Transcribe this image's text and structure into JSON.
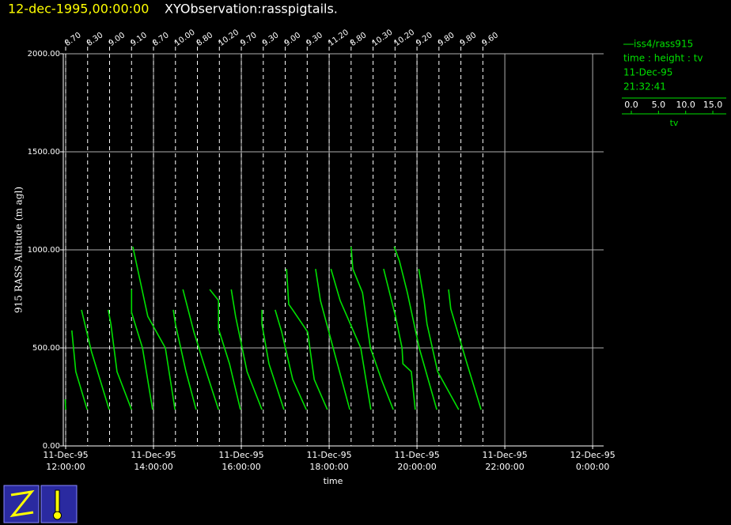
{
  "chart_data": {
    "type": "line",
    "title": "12-dec-1995,00:00:00",
    "subtitle": "XYObservation:rasspigtails.",
    "y_label": "915 RASS Altitude (m agl)",
    "x_label": "time",
    "xlim": [
      11.946,
      24.25
    ],
    "ylim": [
      0,
      2000
    ],
    "xticks": [
      {
        "value": 12,
        "label": "11-Dec-95\n12:00:00"
      },
      {
        "value": 14,
        "label": "11-Dec-95\n14:00:00"
      },
      {
        "value": 16,
        "label": "11-Dec-95\n16:00:00"
      },
      {
        "value": 18,
        "label": "11-Dec-95\n18:00:00"
      },
      {
        "value": 20,
        "label": "11-Dec-95\n20:00:00"
      },
      {
        "value": 22,
        "label": "11-Dec-95\n22:00:00"
      },
      {
        "value": 24,
        "label": "12-Dec-95\n0:00:00"
      }
    ],
    "yticks": [
      {
        "value": 0,
        "label": "0.00"
      },
      {
        "value": 500,
        "label": "500.00"
      },
      {
        "value": 1000,
        "label": "1000.00"
      },
      {
        "value": 1500,
        "label": "1500.00"
      },
      {
        "value": 2000,
        "label": "2000.00"
      }
    ],
    "grid": true,
    "pigtail_times": [
      12,
      12.5,
      13,
      13.5,
      14,
      14.5,
      15,
      15.5,
      16,
      16.5,
      17,
      17.5,
      18,
      18.5,
      19,
      19.5,
      20,
      20.5,
      21,
      21.5
    ],
    "pigtail_labels": [
      "8.70",
      "8.30",
      "9.00",
      "9.10",
      "8.70",
      "10.00",
      "8.80",
      "10.20",
      "9.70",
      "9.30",
      "9.00",
      "9.30",
      "11.20",
      "8.80",
      "10.30",
      "10.20",
      "9.20",
      "9.80",
      "9.80",
      "9.60"
    ],
    "series": [
      {
        "name": "iss4/rass915",
        "color": "#00e000",
        "x": [
          11.99,
          12.0,
          null,
          12.14,
          12.23,
          12.49,
          null,
          12.36,
          12.59,
          12.99,
          null,
          12.97,
          13.03,
          13.17,
          13.5,
          null,
          13.5,
          13.5,
          13.75,
          13.98,
          null,
          13.53,
          13.87,
          14.27,
          14.49,
          null,
          14.45,
          14.5,
          14.74,
          14.97,
          null,
          14.67,
          14.92,
          15.23,
          15.48,
          null,
          15.28,
          15.48,
          15.48,
          15.73,
          15.98,
          null,
          15.77,
          15.87,
          16.13,
          16.47,
          null,
          16.47,
          16.47,
          16.63,
          16.97,
          null,
          16.77,
          16.92,
          17.17,
          17.48,
          null,
          17.03,
          17.08,
          17.17,
          17.51,
          17.66,
          17.96,
          null,
          17.69,
          17.8,
          18.09,
          18.47,
          null,
          18.04,
          18.25,
          18.72,
          18.95,
          null,
          18.5,
          18.54,
          18.76,
          18.94,
          19.19,
          19.46,
          null,
          19.24,
          19.51,
          19.66,
          19.68,
          19.87,
          19.96,
          null,
          19.48,
          19.6,
          19.78,
          20.05,
          20.45,
          null,
          20.04,
          20.16,
          20.23,
          20.47,
          20.95,
          null,
          20.72,
          20.77,
          21.14,
          21.46
        ],
        "values": [
          238,
          185,
          null,
          589,
          379,
          185,
          null,
          694,
          480,
          185,
          null,
          694,
          621,
          379,
          185,
          null,
          798,
          681,
          500,
          185,
          null,
          1016,
          661,
          500,
          185,
          null,
          694,
          621,
          379,
          185,
          null,
          798,
          581,
          359,
          185,
          null,
          798,
          742,
          597,
          419,
          185,
          null,
          798,
          661,
          379,
          185,
          null,
          694,
          621,
          419,
          185,
          null,
          694,
          581,
          339,
          185,
          null,
          903,
          722,
          694,
          581,
          339,
          185,
          null,
          903,
          742,
          500,
          185,
          null,
          903,
          742,
          500,
          185,
          null,
          1016,
          903,
          782,
          500,
          339,
          185,
          null,
          903,
          661,
          500,
          419,
          379,
          185,
          null,
          1016,
          943,
          782,
          500,
          185,
          null,
          903,
          742,
          621,
          379,
          185,
          null,
          798,
          699,
          419,
          185
        ]
      }
    ],
    "legend": {
      "axes": "time : height : tv",
      "date": "11-Dec-95",
      "time": "21:32:41",
      "scale_label": "tv",
      "scale_lim": [
        -1.75,
        17.47
      ],
      "scale_ticks": [
        {
          "value": 0,
          "label": "0.0"
        },
        {
          "value": 5,
          "label": "5.0"
        },
        {
          "value": 10,
          "label": "10.0"
        },
        {
          "value": 15,
          "label": "15.0"
        }
      ]
    }
  }
}
